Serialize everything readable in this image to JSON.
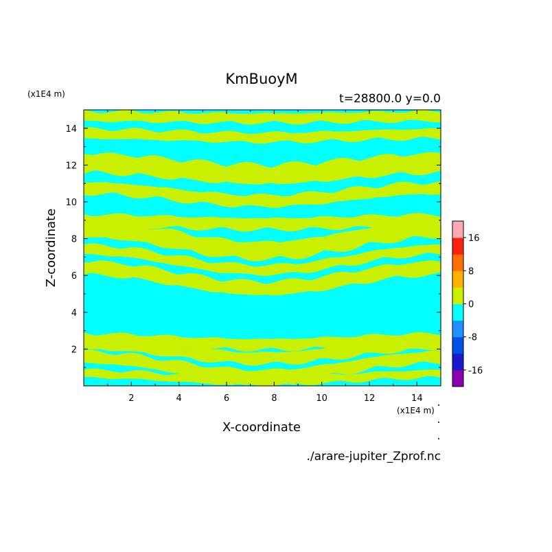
{
  "chart_data": {
    "type": "heatmap",
    "title": "KmBuoyM",
    "subtitle": "t=28800.0 y=0.0",
    "xlabel": "X-coordinate",
    "ylabel": "Z-coordinate",
    "x_unit": "(x1E4 m)",
    "y_unit": "(x1E4 m)",
    "source_file": "./arare-jupiter_Zprof.nc",
    "xlim": [
      0,
      15
    ],
    "ylim": [
      0,
      15
    ],
    "x_ticks": [
      2,
      4,
      6,
      8,
      10,
      12,
      14
    ],
    "y_ticks": [
      2,
      4,
      6,
      8,
      10,
      12,
      14
    ],
    "colorbar": {
      "levels": [
        -20,
        -16,
        -12,
        -8,
        -4,
        0,
        4,
        8,
        12,
        16,
        20
      ],
      "colors": [
        "#8a00b0",
        "#1a1acc",
        "#0050e8",
        "#1e90ff",
        "#00ffff",
        "#c8f000",
        "#ffb000",
        "#ff7000",
        "#ff2010",
        "#ffa8b0"
      ],
      "tick_labels": [
        "16",
        "8",
        "0",
        "-8",
        "-16"
      ]
    },
    "field_colors": {
      "negative": "#00ffff",
      "positive": "#c8f000"
    },
    "bands": [
      {
        "z_center": 0.45,
        "amplitude": 0.2,
        "thickness": 0.2
      },
      {
        "z_center": 1.05,
        "amplitude": 0.5,
        "thickness": 0.3
      },
      {
        "z_center": 1.9,
        "amplitude": 0.4,
        "thickness": 0.3
      },
      {
        "z_center": 2.4,
        "amplitude": 0.15,
        "thickness": 0.28
      },
      {
        "z_center": 5.85,
        "amplitude": 0.55,
        "thickness": 0.35
      },
      {
        "z_center": 6.85,
        "amplitude": 0.55,
        "thickness": 0.25
      },
      {
        "z_center": 7.95,
        "amplitude": 0.6,
        "thickness": 0.45
      },
      {
        "z_center": 8.9,
        "amplitude": 0.1,
        "thickness": 0.3
      },
      {
        "z_center": 10.4,
        "amplitude": 0.35,
        "thickness": 0.3
      },
      {
        "z_center": 11.8,
        "amplitude": 0.3,
        "thickness": 0.5
      },
      {
        "z_center": 13.6,
        "amplitude": 0.1,
        "thickness": 0.25
      },
      {
        "z_center": 14.6,
        "amplitude": 0.05,
        "thickness": 0.25
      }
    ]
  }
}
